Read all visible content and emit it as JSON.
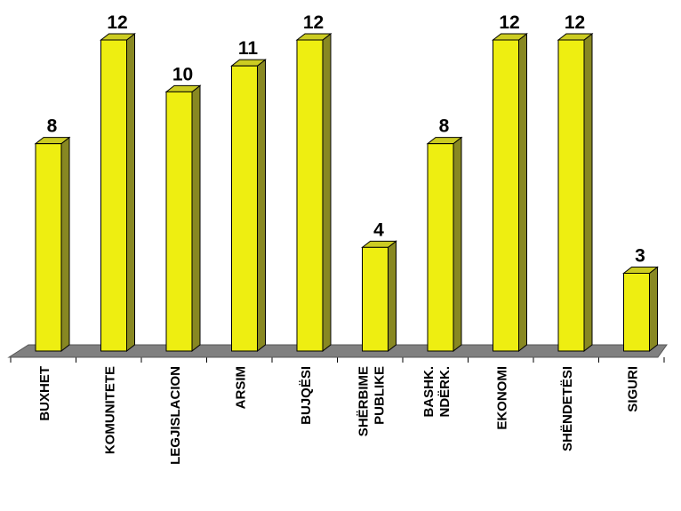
{
  "chart_data": {
    "type": "bar",
    "style": "3d-columns",
    "categories": [
      [
        "BUXHET"
      ],
      [
        "KOMUNITETE"
      ],
      [
        "LEGJISLACION"
      ],
      [
        "ARSIM"
      ],
      [
        "BUJQËSI"
      ],
      [
        "SHËRBIME",
        "PUBLIKE"
      ],
      [
        "BASHK.",
        "NDËRK."
      ],
      [
        "EKONOMI"
      ],
      [
        "SHËNDETËSI"
      ],
      [
        "SIGURI"
      ]
    ],
    "values": [
      8,
      12,
      10,
      11,
      12,
      4,
      8,
      12,
      12,
      3
    ],
    "data_labels": [
      "8",
      "12",
      "10",
      "11",
      "12",
      "4",
      "8",
      "12",
      "12",
      "3"
    ],
    "ylim": [
      0,
      12
    ],
    "grid": false,
    "legend": "none",
    "title": "",
    "xlabel": "",
    "ylabel": "",
    "colors": {
      "bar_front": "#eeee11",
      "bar_side": "#888822",
      "bar_top": "#cccc22",
      "floor": "#808080",
      "outline": "#000000"
    }
  }
}
